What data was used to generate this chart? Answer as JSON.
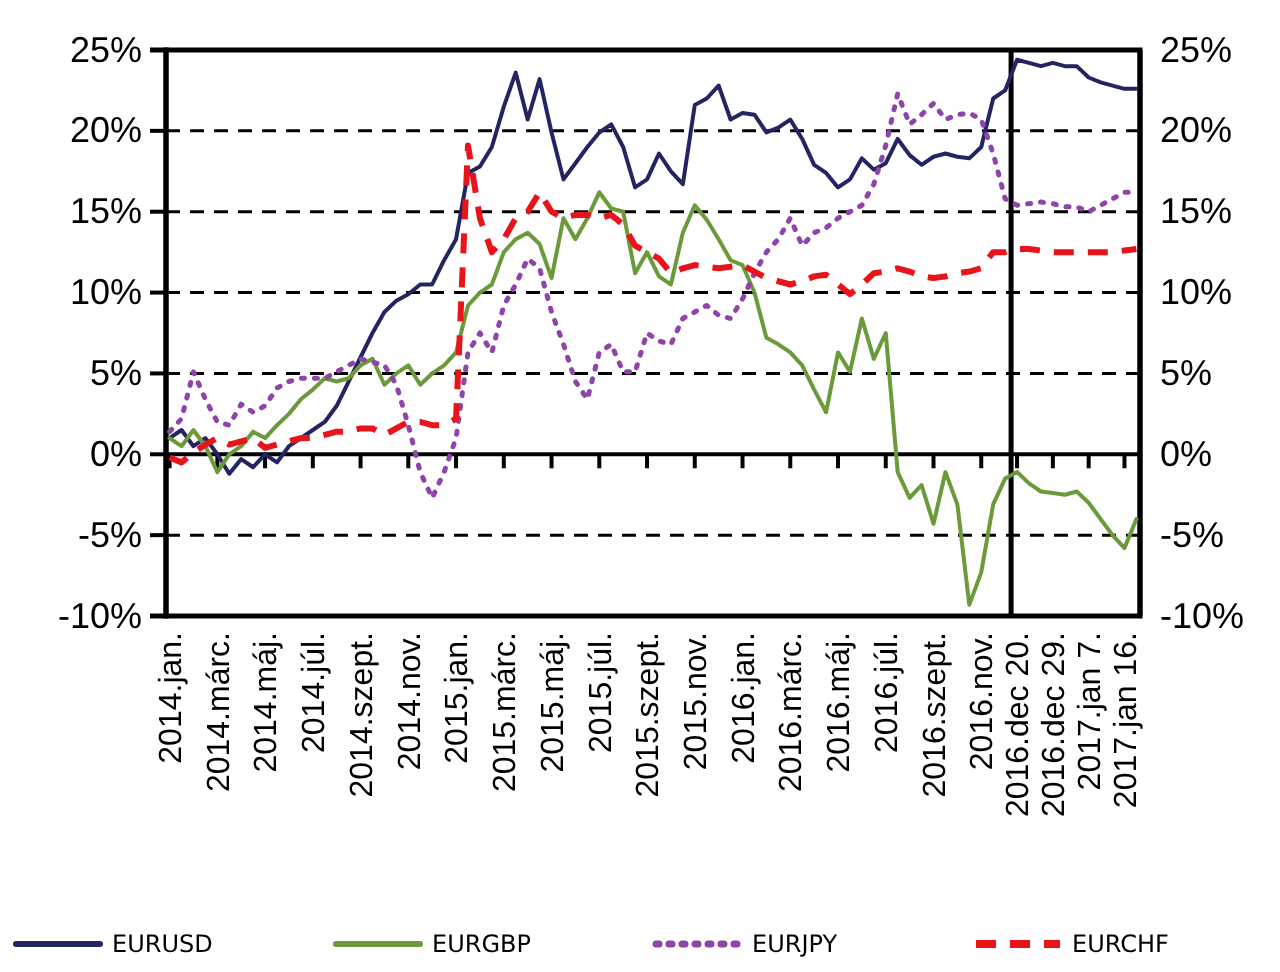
{
  "chart_data": {
    "type": "line",
    "categories": [
      "2014.jan.",
      null,
      null,
      null,
      "2014.márc.",
      null,
      null,
      null,
      "2014.máj.",
      null,
      null,
      null,
      "2014.júl.",
      null,
      null,
      null,
      "2014.szept.",
      null,
      null,
      null,
      "2014.nov.",
      null,
      null,
      null,
      "2015.jan.",
      null,
      null,
      null,
      "2015.márc.",
      null,
      null,
      null,
      "2015.máj.",
      null,
      null,
      null,
      "2015.júl.",
      null,
      null,
      null,
      "2015.szept.",
      null,
      null,
      null,
      "2015.nov.",
      null,
      null,
      null,
      "2016.jan.",
      null,
      null,
      null,
      "2016.márc.",
      null,
      null,
      null,
      "2016.máj.",
      null,
      null,
      null,
      "2016.júl.",
      null,
      null,
      null,
      "2016.szept.",
      null,
      null,
      null,
      "2016.nov.",
      null,
      null,
      "2016.dec 20.",
      null,
      null,
      "2016.dec 29.",
      null,
      null,
      "2017.jan 7.",
      null,
      null,
      "2017.jan 16.",
      null
    ],
    "series": [
      {
        "name": "EURUSD",
        "color": "#232461",
        "line_style": "solid",
        "values": [
          1.0,
          1.5,
          0.5,
          1.0,
          0.0,
          -1.2,
          -0.3,
          -0.8,
          0.0,
          -0.5,
          0.5,
          1.0,
          1.5,
          2.0,
          3.0,
          4.5,
          6.0,
          7.5,
          8.8,
          9.5,
          9.9,
          10.5,
          10.5,
          12.0,
          13.3,
          17.4,
          17.8,
          19.0,
          21.5,
          23.6,
          20.7,
          23.2,
          19.9,
          17.0,
          18.0,
          19.0,
          19.9,
          20.4,
          19.0,
          16.5,
          17.0,
          18.6,
          17.5,
          16.7,
          21.6,
          22.0,
          22.8,
          20.7,
          21.1,
          21.0,
          19.9,
          20.2,
          20.7,
          19.5,
          17.9,
          17.4,
          16.5,
          17.0,
          18.3,
          17.6,
          18.0,
          19.5,
          18.5,
          17.9,
          18.4,
          18.6,
          18.4,
          18.3,
          19.0,
          22.0,
          22.5,
          24.4,
          24.2,
          24.0,
          24.2,
          24.0,
          24.0,
          23.3,
          23.0,
          22.8,
          22.6,
          22.6
        ]
      },
      {
        "name": "EURGBP",
        "color": "#6a9a3a",
        "line_style": "solid",
        "values": [
          1.0,
          0.5,
          1.5,
          0.5,
          -1.1,
          0.0,
          0.5,
          1.4,
          1.0,
          1.8,
          2.5,
          3.4,
          4.0,
          4.7,
          4.5,
          4.7,
          5.5,
          5.9,
          4.3,
          5.0,
          5.5,
          4.3,
          5.0,
          5.5,
          6.3,
          9.2,
          10.0,
          10.5,
          12.5,
          13.3,
          13.7,
          13.0,
          10.9,
          14.6,
          13.3,
          14.6,
          16.2,
          15.2,
          15.0,
          11.2,
          12.5,
          11.0,
          10.5,
          13.7,
          15.4,
          14.5,
          13.3,
          12.0,
          11.7,
          10.0,
          7.2,
          6.8,
          6.3,
          5.5,
          4.0,
          2.6,
          6.3,
          5.1,
          8.4,
          5.9,
          7.5,
          -1.1,
          -2.7,
          -1.9,
          -4.3,
          -1.1,
          -3.1,
          -9.3,
          -7.3,
          -3.1,
          -1.5,
          -1.1,
          -1.8,
          -2.3,
          -2.4,
          -2.5,
          -2.3,
          -3.0,
          -4.0,
          -5.0,
          -5.8,
          -4.0
        ]
      },
      {
        "name": "EURJPY",
        "color": "#8e44a8",
        "line_style": "dotted",
        "values": [
          1.4,
          2.2,
          5.1,
          3.4,
          2.0,
          1.8,
          3.1,
          2.6,
          3.0,
          4.1,
          4.5,
          4.7,
          4.7,
          4.7,
          5.1,
          5.5,
          5.9,
          5.7,
          5.5,
          4.3,
          1.8,
          -1.1,
          -2.7,
          -1.1,
          1.0,
          6.3,
          7.5,
          6.3,
          9.2,
          10.5,
          12.1,
          11.5,
          8.8,
          6.8,
          4.5,
          3.4,
          6.3,
          6.8,
          5.1,
          5.1,
          7.5,
          7.0,
          6.8,
          8.4,
          8.8,
          9.2,
          8.6,
          8.4,
          9.6,
          11.2,
          12.5,
          13.3,
          14.6,
          12.9,
          13.7,
          14.0,
          14.6,
          15.0,
          15.4,
          16.7,
          19.1,
          22.3,
          20.4,
          21.0,
          21.7,
          20.7,
          21.0,
          21.1,
          20.7,
          18.6,
          15.8,
          15.4,
          15.5,
          15.6,
          15.5,
          15.3,
          15.3,
          15.0,
          15.4,
          15.8,
          16.2,
          16.2
        ]
      },
      {
        "name": "EURCHF",
        "color": "#e8141a",
        "line_style": "dashed",
        "values": [
          -0.2,
          -0.5,
          0.1,
          0.6,
          1.0,
          0.6,
          0.8,
          1.0,
          0.4,
          0.6,
          0.8,
          1.0,
          1.0,
          1.2,
          1.4,
          1.4,
          1.6,
          1.6,
          1.2,
          1.6,
          2.0,
          2.0,
          1.8,
          1.8,
          2.2,
          19.1,
          14.6,
          12.5,
          13.3,
          14.6,
          15.0,
          16.2,
          15.0,
          14.6,
          14.8,
          14.8,
          14.6,
          14.8,
          14.2,
          12.9,
          12.5,
          12.1,
          11.2,
          11.5,
          11.7,
          11.6,
          11.5,
          11.6,
          11.7,
          11.3,
          10.9,
          10.7,
          10.5,
          10.7,
          11.0,
          11.1,
          10.5,
          9.9,
          10.5,
          11.2,
          11.3,
          11.5,
          11.3,
          11.0,
          10.9,
          11.0,
          11.2,
          11.3,
          11.5,
          12.5,
          12.5,
          12.7,
          12.7,
          12.6,
          12.5,
          12.5,
          12.5,
          12.5,
          12.5,
          12.5,
          12.6,
          12.7
        ]
      }
    ],
    "ylim": [
      -10,
      25
    ],
    "yticks": [
      {
        "value": -10,
        "label": "-10%"
      },
      {
        "value": -5,
        "label": "-5%"
      },
      {
        "value": 0,
        "label": "0%"
      },
      {
        "value": 5,
        "label": "5%"
      },
      {
        "value": 10,
        "label": "10%"
      },
      {
        "value": 15,
        "label": "15%"
      },
      {
        "value": 20,
        "label": "20%"
      },
      {
        "value": 25,
        "label": "25%"
      }
    ],
    "y2lim": [
      -10,
      25
    ],
    "y2ticks": [
      {
        "value": -10,
        "label": "-10%"
      },
      {
        "value": -5,
        "label": "-5%"
      },
      {
        "value": 0,
        "label": "0%"
      },
      {
        "value": 5,
        "label": "5%"
      },
      {
        "value": 10,
        "label": "10%"
      },
      {
        "value": 15,
        "label": "15%"
      },
      {
        "value": 20,
        "label": "20%"
      },
      {
        "value": 25,
        "label": "25%"
      }
    ],
    "grid": "y",
    "legend": "bottom",
    "marker": "none"
  }
}
